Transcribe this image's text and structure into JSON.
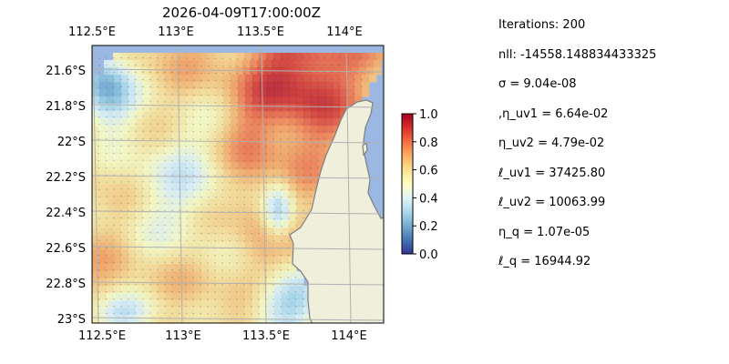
{
  "title": "2026-04-09T17:00:00Z",
  "map": {
    "top_ticks": [
      "112.5°E",
      "113°E",
      "113.5°E",
      "114°E"
    ],
    "bottom_ticks": [
      "112.5°E",
      "113°E",
      "113.5°E",
      "114°E"
    ],
    "left_ticks": [
      "21.6°S",
      "21.8°S",
      "22°S",
      "22.2°S",
      "22.4°S",
      "22.6°S",
      "22.8°S",
      "23°S"
    ],
    "colors": {
      "ocean": "#9ab8e2",
      "land": "#efefdb",
      "coast": "#7f7f7f",
      "grid": "#b0b0b0"
    }
  },
  "colorbar": {
    "ticks": [
      "0.0",
      "0.2",
      "0.4",
      "0.6",
      "0.8",
      "1.0"
    ],
    "colors": [
      "#313695",
      "#4575b4",
      "#74add1",
      "#abd9e9",
      "#e0f3f8",
      "#ffffbf",
      "#fee090",
      "#fdae61",
      "#f46d43",
      "#d73027",
      "#a50026"
    ]
  },
  "params": [
    "Iterations: 200",
    "nll: -14558.148834433325",
    "σ = 9.04e-08",
    ",η_uv1 = 6.64e-02",
    "η_uv2 = 4.79e-02",
    "ℓ_uv1 = 37425.80",
    "ℓ_uv2 = 10063.99",
    "η_q = 1.07e-05",
    "ℓ_q = 16944.92"
  ]
}
